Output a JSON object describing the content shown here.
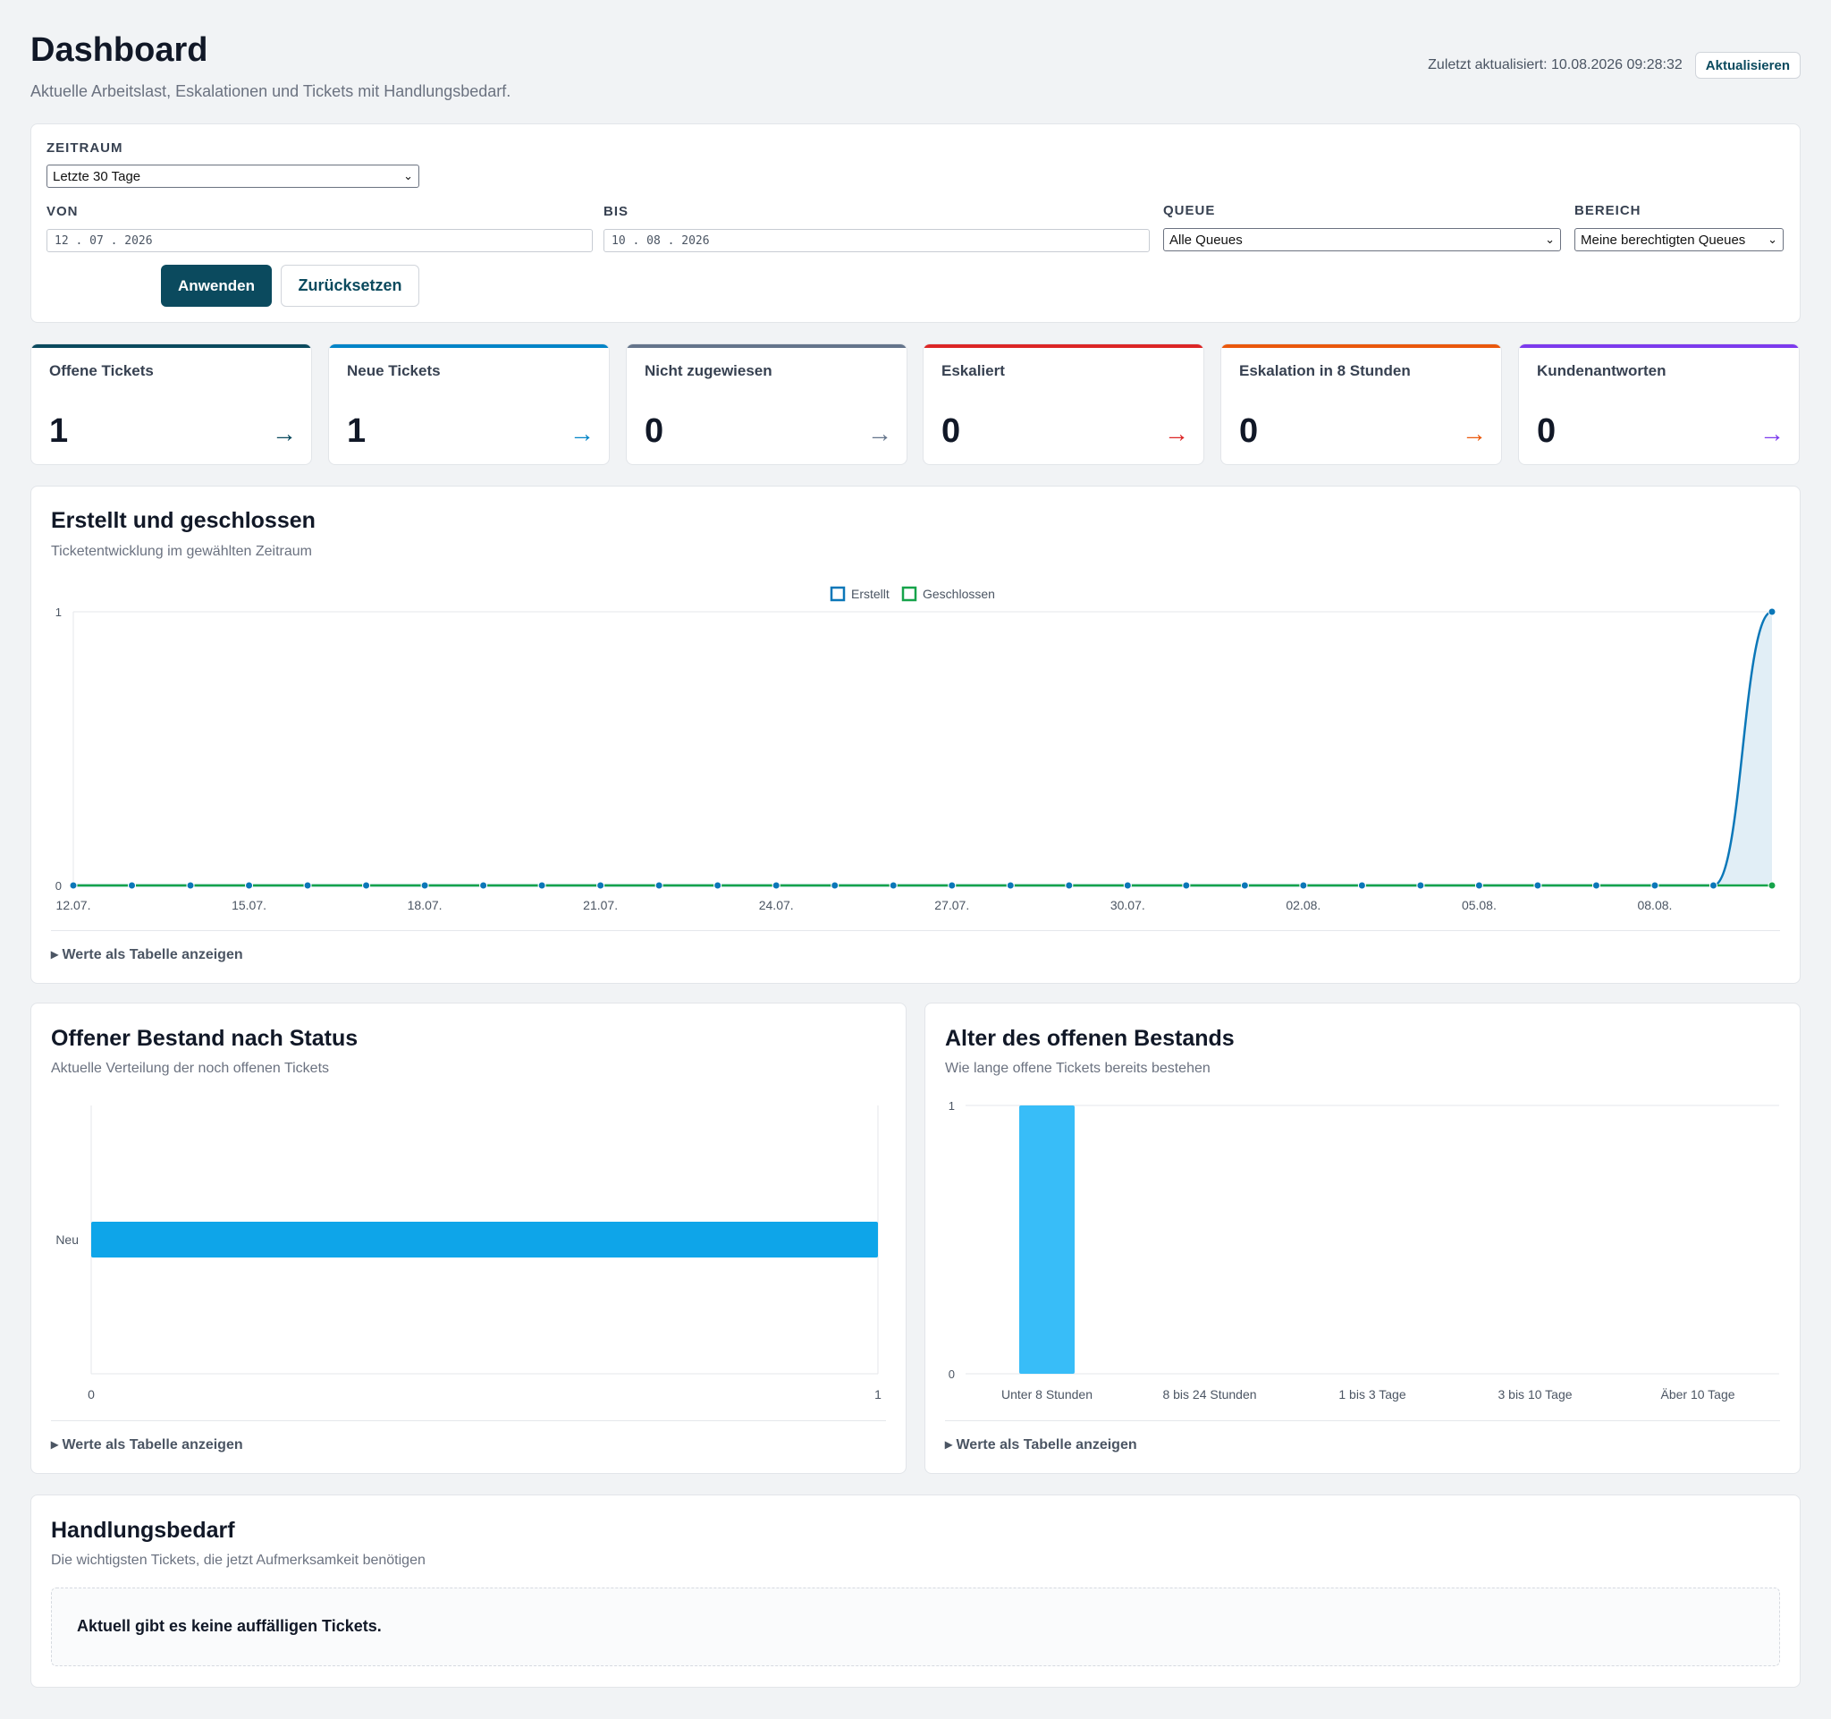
{
  "header": {
    "title": "Dashboard",
    "subtitle": "Aktuelle Arbeitslast, Eskalationen und Tickets mit Handlungsbedarf.",
    "last_updated": "Zuletzt aktualisiert: 10.08.2026 09:28:32",
    "refresh_label": "Aktualisieren"
  },
  "filters": {
    "zeitraum_label": "ZEITRAUM",
    "zeitraum_value": "Letzte 30 Tage",
    "von_label": "VON",
    "von_value": "12 . 07 . 2026",
    "bis_label": "BIS",
    "bis_value": "10 . 08 . 2026",
    "queue_label": "QUEUE",
    "queue_value": "Alle Queues",
    "bereich_label": "BEREICH",
    "bereich_value": "Meine berechtigten Queues",
    "apply_label": "Anwenden",
    "reset_label": "Zurücksetzen"
  },
  "kpis": [
    {
      "title": "Offene Tickets",
      "value": "1",
      "color": "#0b4a5e"
    },
    {
      "title": "Neue Tickets",
      "value": "1",
      "color": "#0284c7"
    },
    {
      "title": "Nicht zugewiesen",
      "value": "0",
      "color": "#64748b"
    },
    {
      "title": "Eskaliert",
      "value": "0",
      "color": "#dc2626"
    },
    {
      "title": "Eskalation in 8 Stunden",
      "value": "0",
      "color": "#ea580c"
    },
    {
      "title": "Kundenantworten",
      "value": "0",
      "color": "#7c3aed"
    }
  ],
  "arrow_glyph": "→",
  "trend": {
    "title": "Erstellt und geschlossen",
    "subtitle": "Ticketentwicklung im gewählten Zeitraum",
    "table_link": "▸ Werte als Tabelle anzeigen"
  },
  "status_panel": {
    "title": "Offener Bestand nach Status",
    "subtitle": "Aktuelle Verteilung der noch offenen Tickets",
    "table_link": "▸ Werte als Tabelle anzeigen"
  },
  "age_panel": {
    "title": "Alter des offenen Bestands",
    "subtitle": "Wie lange offene Tickets bereits bestehen",
    "table_link": "▸ Werte als Tabelle anzeigen"
  },
  "action_panel": {
    "title": "Handlungsbedarf",
    "subtitle": "Die wichtigsten Tickets, die jetzt Aufmerksamkeit benötigen",
    "empty_text": "Aktuell gibt es keine auffälligen Tickets."
  },
  "chart_data": [
    {
      "type": "line",
      "x": [
        "12.07.",
        "13.07.",
        "14.07.",
        "15.07.",
        "16.07.",
        "17.07.",
        "18.07.",
        "19.07.",
        "20.07.",
        "21.07.",
        "22.07.",
        "23.07.",
        "24.07.",
        "25.07.",
        "26.07.",
        "27.07.",
        "28.07.",
        "29.07.",
        "30.07.",
        "31.07.",
        "01.08.",
        "02.08.",
        "03.08.",
        "04.08.",
        "05.08.",
        "06.08.",
        "07.08.",
        "08.08.",
        "09.08.",
        "10.08."
      ],
      "tick_labels": [
        "12.07.",
        "15.07.",
        "18.07.",
        "21.07.",
        "24.07.",
        "27.07.",
        "30.07.",
        "02.08.",
        "05.08.",
        "08.08."
      ],
      "series": [
        {
          "name": "Erstellt",
          "color": "#0b77b8",
          "values": [
            0,
            0,
            0,
            0,
            0,
            0,
            0,
            0,
            0,
            0,
            0,
            0,
            0,
            0,
            0,
            0,
            0,
            0,
            0,
            0,
            0,
            0,
            0,
            0,
            0,
            0,
            0,
            0,
            0,
            1
          ]
        },
        {
          "name": "Geschlossen",
          "color": "#16a34a",
          "values": [
            0,
            0,
            0,
            0,
            0,
            0,
            0,
            0,
            0,
            0,
            0,
            0,
            0,
            0,
            0,
            0,
            0,
            0,
            0,
            0,
            0,
            0,
            0,
            0,
            0,
            0,
            0,
            0,
            0,
            0
          ]
        }
      ],
      "ylim": [
        0,
        1
      ],
      "legend": "top-center",
      "grid": true
    },
    {
      "type": "bar",
      "orientation": "horizontal",
      "categories": [
        "Neu"
      ],
      "values": [
        1
      ],
      "xlim": [
        0,
        1
      ],
      "color": "#0ea5e9"
    },
    {
      "type": "bar",
      "categories": [
        "Unter 8 Stunden",
        "8 bis 24 Stunden",
        "1 bis 3 Tage",
        "3 bis 10 Tage",
        "Äber 10 Tage"
      ],
      "values": [
        1,
        0,
        0,
        0,
        0
      ],
      "ylim": [
        0,
        1
      ],
      "color": "#38bdf8"
    }
  ]
}
